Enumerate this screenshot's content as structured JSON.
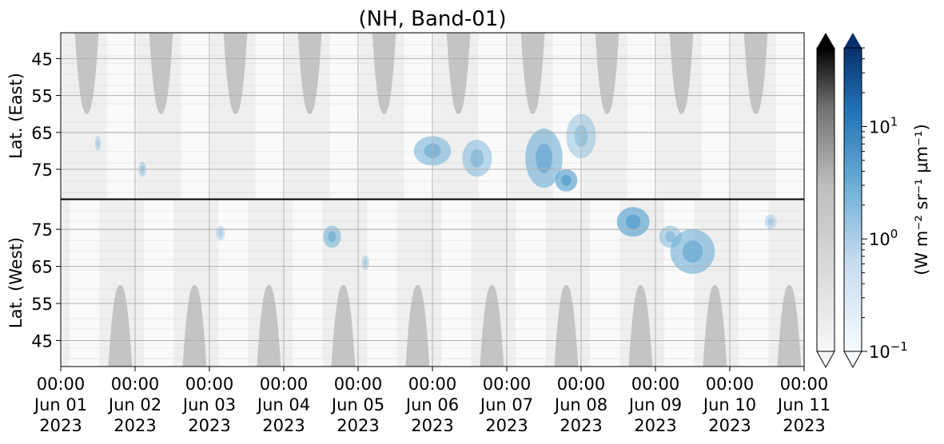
{
  "chart_data": {
    "type": "heatmap",
    "title": "(NH, Band-01)",
    "x": {
      "range": [
        "2023-06-01T00:00",
        "2023-06-11T00:00"
      ],
      "ticks": [
        {
          "time": "00:00",
          "date": "Jun 01",
          "year": "2023"
        },
        {
          "time": "00:00",
          "date": "Jun 02",
          "year": "2023"
        },
        {
          "time": "00:00",
          "date": "Jun 03",
          "year": "2023"
        },
        {
          "time": "00:00",
          "date": "Jun 04",
          "year": "2023"
        },
        {
          "time": "00:00",
          "date": "Jun 05",
          "year": "2023"
        },
        {
          "time": "00:00",
          "date": "Jun 06",
          "year": "2023"
        },
        {
          "time": "00:00",
          "date": "Jun 07",
          "year": "2023"
        },
        {
          "time": "00:00",
          "date": "Jun 08",
          "year": "2023"
        },
        {
          "time": "00:00",
          "date": "Jun 09",
          "year": "2023"
        },
        {
          "time": "00:00",
          "date": "Jun 10",
          "year": "2023"
        },
        {
          "time": "00:00",
          "date": "Jun 11",
          "year": "2023"
        }
      ]
    },
    "panels": [
      {
        "name": "east",
        "ylabel": "Lat. (East)",
        "ylim": [
          38,
          83
        ],
        "inverted": true,
        "yticks": [
          45,
          55,
          65,
          75
        ]
      },
      {
        "name": "west",
        "ylabel": "Lat. (West)",
        "ylim": [
          38,
          83
        ],
        "inverted": false,
        "yticks": [
          75,
          65,
          55,
          45
        ]
      }
    ],
    "mask_regions": [
      {
        "panel": "east",
        "center_days": [
          0.35,
          1.35,
          2.35,
          3.35,
          4.35,
          5.35,
          6.35,
          7.35,
          8.35,
          9.35
        ],
        "peak_lat": 60,
        "half_width_days": 0.16,
        "color": "#c4c4c4"
      },
      {
        "panel": "west",
        "center_days": [
          0.8,
          1.8,
          2.8,
          3.8,
          4.8,
          5.8,
          6.8,
          7.8,
          8.8,
          9.8
        ],
        "peak_lat": 60,
        "half_width_days": 0.16,
        "color": "#c4c4c4"
      }
    ],
    "colorbars": [
      {
        "name": "grayscale",
        "colors": [
          "#f7f7f7",
          "#bdbdbd",
          "#737373",
          "#000000"
        ],
        "extend": "both"
      },
      {
        "name": "blues",
        "scale": "log",
        "range": [
          0.1,
          50
        ],
        "colors": [
          "#f7fbff",
          "#c6dbef",
          "#6baed6",
          "#2171b5",
          "#08306b"
        ],
        "extend": "both",
        "ticks": [
          {
            "value": 0.1,
            "base": "10",
            "exp": "−1"
          },
          {
            "value": 1,
            "base": "10",
            "exp": "0"
          },
          {
            "value": 10,
            "base": "10",
            "exp": "1"
          }
        ],
        "label": "(W m⁻² sr⁻¹ μm⁻¹)"
      }
    ],
    "grid": true
  }
}
